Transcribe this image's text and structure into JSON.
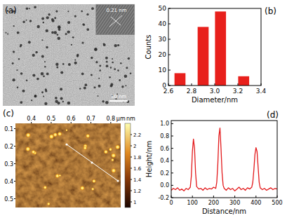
{
  "chart_data": [
    {
      "type": "image",
      "title": "(a)",
      "annotations": [
        "0.21 nm",
        "30 nm"
      ]
    },
    {
      "type": "bar",
      "title": "(b)",
      "xlabel": "Diameter/nm",
      "ylabel": "Counts",
      "x": [
        2.7,
        2.9,
        3.05,
        3.25
      ],
      "values": [
        8,
        38,
        48,
        6
      ],
      "color": "#e8201c",
      "xlim": [
        2.6,
        3.4
      ],
      "xticks": [
        2.6,
        2.8,
        {
          "value": 3,
          "label": "3.0"
        },
        3.2,
        3.4
      ],
      "ylim": [
        0,
        50
      ],
      "yticks": [
        0,
        10,
        20,
        30,
        40,
        50
      ]
    },
    {
      "type": "image",
      "title": "(c)",
      "xlabel": "μm",
      "xlim": [
        0.32,
        0.85
      ],
      "xticks": [
        0.4,
        0.5,
        0.6,
        0.7,
        0.8
      ],
      "ylim": [
        0.07,
        0.55
      ],
      "yticks": [
        0.1,
        0.2,
        0.3,
        0.4,
        0.5
      ],
      "color_range": [
        0.9,
        2.4
      ],
      "color_ticks": [
        1,
        1.2,
        1.4,
        1.6,
        1.8,
        2,
        2.2
      ],
      "color_label": "nm"
    },
    {
      "type": "line",
      "title": "(d)",
      "xlabel": "Distance/nm",
      "ylabel": "Height/nm",
      "color": "#e31a1c",
      "x": [
        0,
        10,
        20,
        30,
        40,
        50,
        60,
        70,
        80,
        90,
        95,
        100,
        105,
        110,
        115,
        120,
        130,
        140,
        150,
        160,
        170,
        180,
        190,
        200,
        210,
        215,
        220,
        225,
        230,
        235,
        240,
        245,
        250,
        260,
        270,
        280,
        290,
        300,
        310,
        320,
        330,
        340,
        350,
        360,
        370,
        380,
        385,
        390,
        395,
        400,
        405,
        410,
        415,
        420,
        430,
        440,
        450,
        460,
        470,
        480,
        490,
        500
      ],
      "values": [
        -0.08,
        -0.05,
        -0.07,
        -0.04,
        -0.08,
        -0.06,
        -0.09,
        -0.05,
        -0.07,
        -0.03,
        0.15,
        0.55,
        0.75,
        0.6,
        0.2,
        -0.02,
        -0.06,
        -0.05,
        -0.08,
        -0.04,
        -0.07,
        -0.05,
        -0.06,
        -0.03,
        -0.05,
        0.05,
        0.35,
        0.8,
        0.93,
        0.6,
        0.2,
        0,
        -0.05,
        -0.08,
        -0.04,
        -0.07,
        -0.05,
        -0.09,
        -0.06,
        -0.03,
        -0.07,
        -0.05,
        -0.08,
        -0.04,
        -0.06,
        -0.03,
        0.05,
        0.25,
        0.5,
        0.61,
        0.55,
        0.3,
        0.05,
        -0.04,
        -0.07,
        -0.05,
        -0.08,
        -0.06,
        -0.04,
        -0.07,
        -0.05,
        -0.06
      ],
      "xlim": [
        0,
        500
      ],
      "xticks": [
        0,
        100,
        200,
        300,
        400,
        500
      ],
      "ylim": [
        -0.2,
        1.05
      ],
      "yticks": [
        -0.2,
        {
          "value": 0,
          "label": "0.0"
        },
        0.2,
        0.4,
        0.6,
        0.8,
        {
          "value": 1,
          "label": "1.0"
        }
      ]
    }
  ]
}
